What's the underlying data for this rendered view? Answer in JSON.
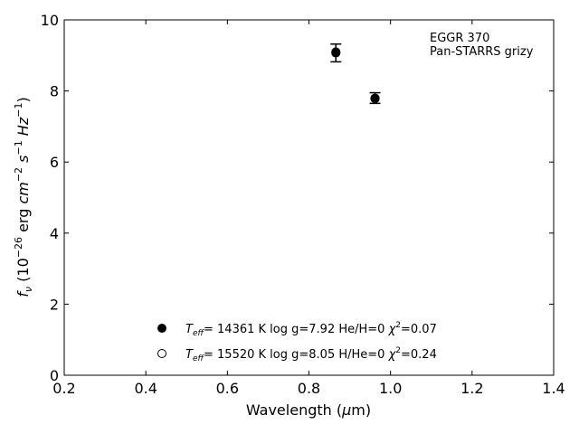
{
  "chart_data": {
    "type": "scatter",
    "xlabel": "Wavelength (μm)",
    "ylabel": "f_ν (10^-26 erg cm^-2 s^-1 Hz^-1)",
    "xlim": [
      0.2,
      1.4
    ],
    "ylim": [
      0,
      10
    ],
    "x_ticks": [
      0.2,
      0.4,
      0.6,
      0.8,
      1.0,
      1.2,
      1.4
    ],
    "x_tick_labels": [
      "0.2",
      "0.4",
      "0.6",
      "0.8",
      "1.0",
      "1.2",
      "1.4"
    ],
    "y_ticks": [
      0,
      2,
      4,
      6,
      8,
      10
    ],
    "y_tick_labels": [
      "0",
      "2",
      "4",
      "6",
      "8",
      "10"
    ],
    "grid": false,
    "annotation": [
      "EGGR 370",
      "Pan-STARRS grizy"
    ],
    "observed": [
      {
        "x": 0.866,
        "y": 9.07,
        "yerr": 0.25
      },
      {
        "x": 0.962,
        "y": 7.8,
        "yerr": 0.15
      }
    ],
    "series": [
      {
        "marker": "filled-circle",
        "label": "Teff= 14361 K  log g=7.92  He/H=0  χ²=0.07",
        "x": [
          0.866,
          0.962
        ],
        "y": [
          9.1,
          7.78
        ]
      },
      {
        "marker": "open-circle",
        "label": "Teff= 15520 K  log g=8.05  H/He=0  χ²=0.24",
        "x": [
          0.866,
          0.962
        ],
        "y": [
          9.08,
          7.79
        ]
      }
    ],
    "legend_position": "bottom-left"
  }
}
